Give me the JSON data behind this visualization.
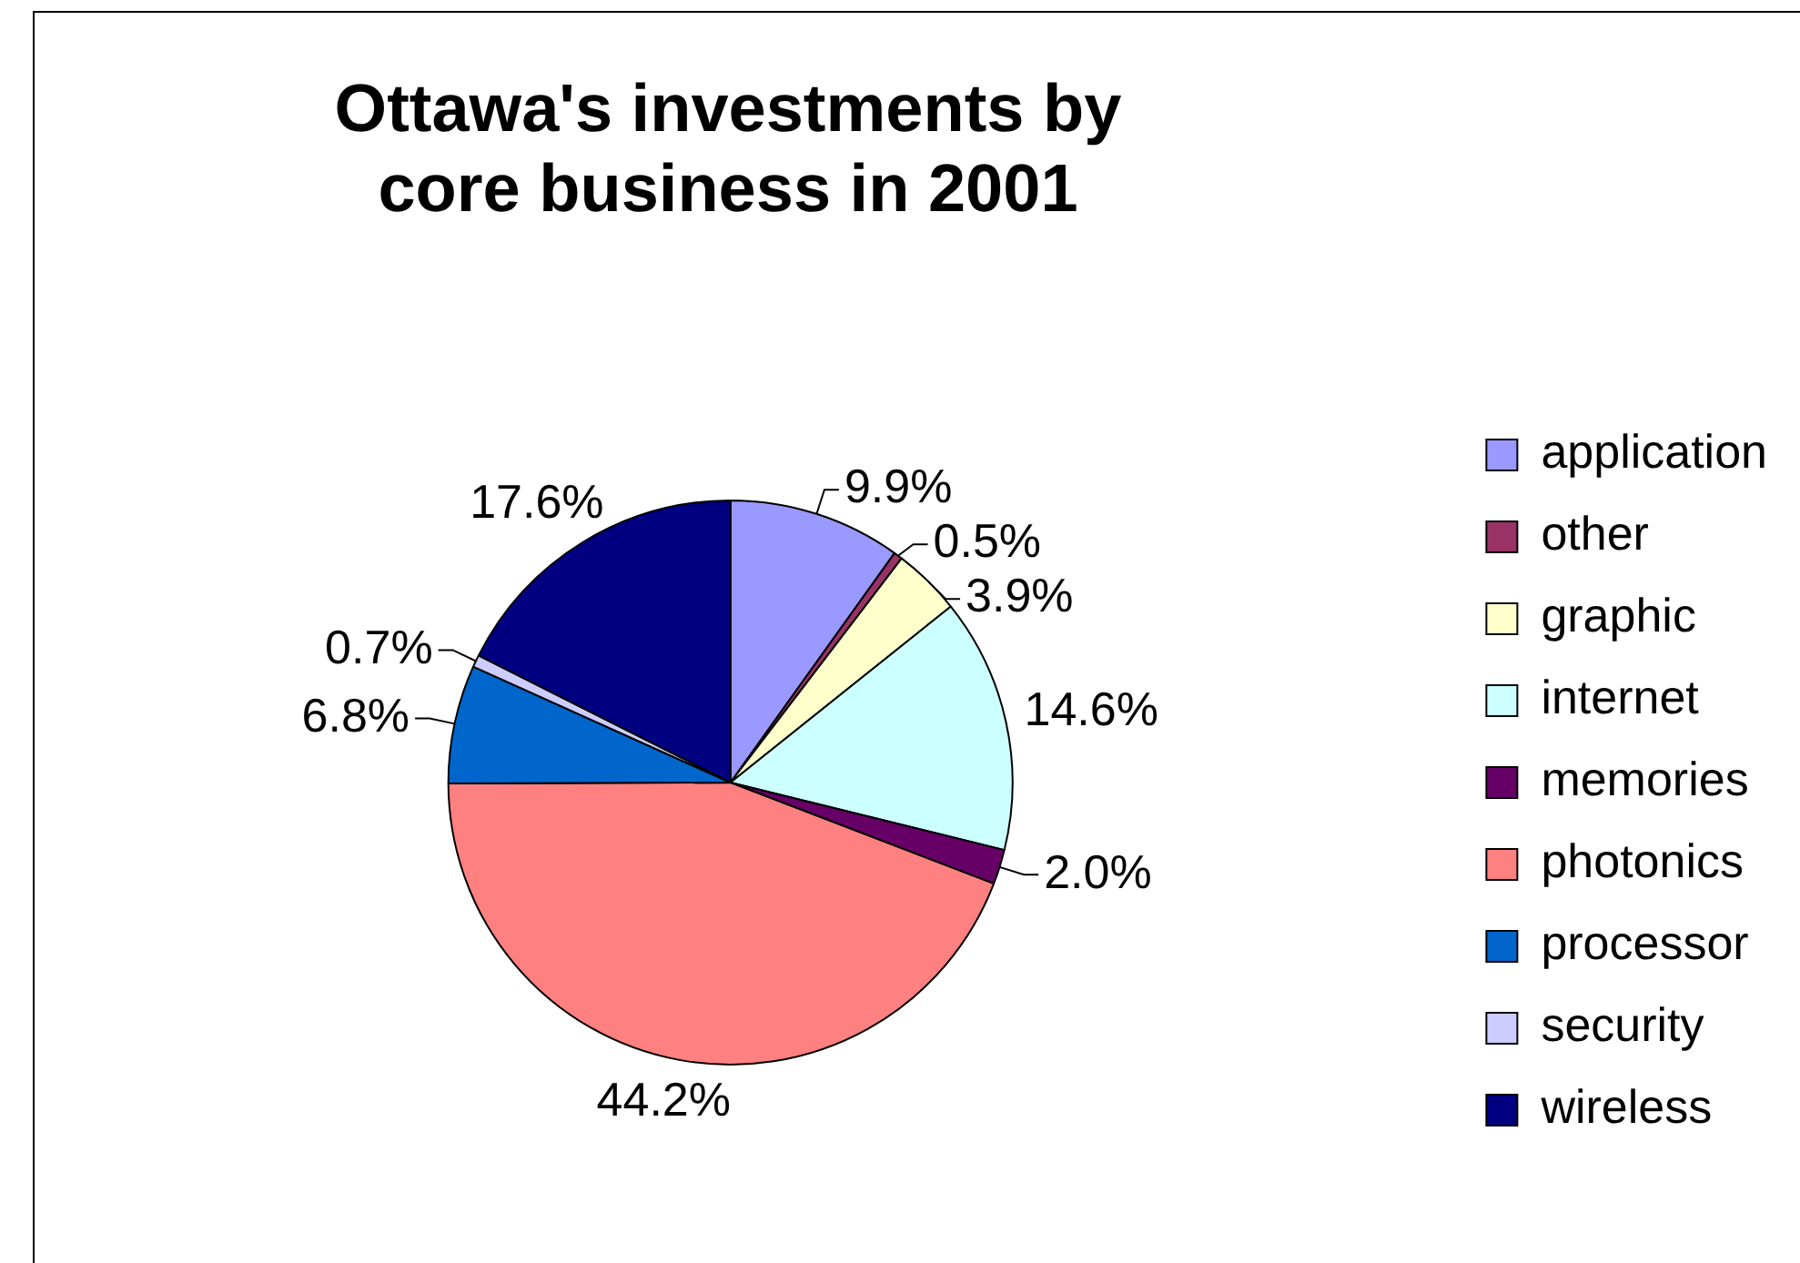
{
  "chart_data": {
    "type": "pie",
    "title": "Ottawa's investments by core business in 2001",
    "categories": [
      "application",
      "other",
      "graphic",
      "internet",
      "memories",
      "photonics",
      "processor",
      "security",
      "wireless"
    ],
    "values": [
      9.9,
      0.5,
      3.9,
      14.6,
      2.0,
      44.2,
      6.8,
      0.7,
      17.6
    ],
    "colors": [
      "#9999ff",
      "#993366",
      "#ffffcc",
      "#ccffff",
      "#660066",
      "#ff8080",
      "#0066cc",
      "#ccccff",
      "#000080"
    ],
    "value_labels": [
      "9.9%",
      "0.5%",
      "3.9%",
      "14.6%",
      "2.0%",
      "44.2%",
      "6.8%",
      "0.7%",
      "17.6%"
    ],
    "legend": "right"
  }
}
